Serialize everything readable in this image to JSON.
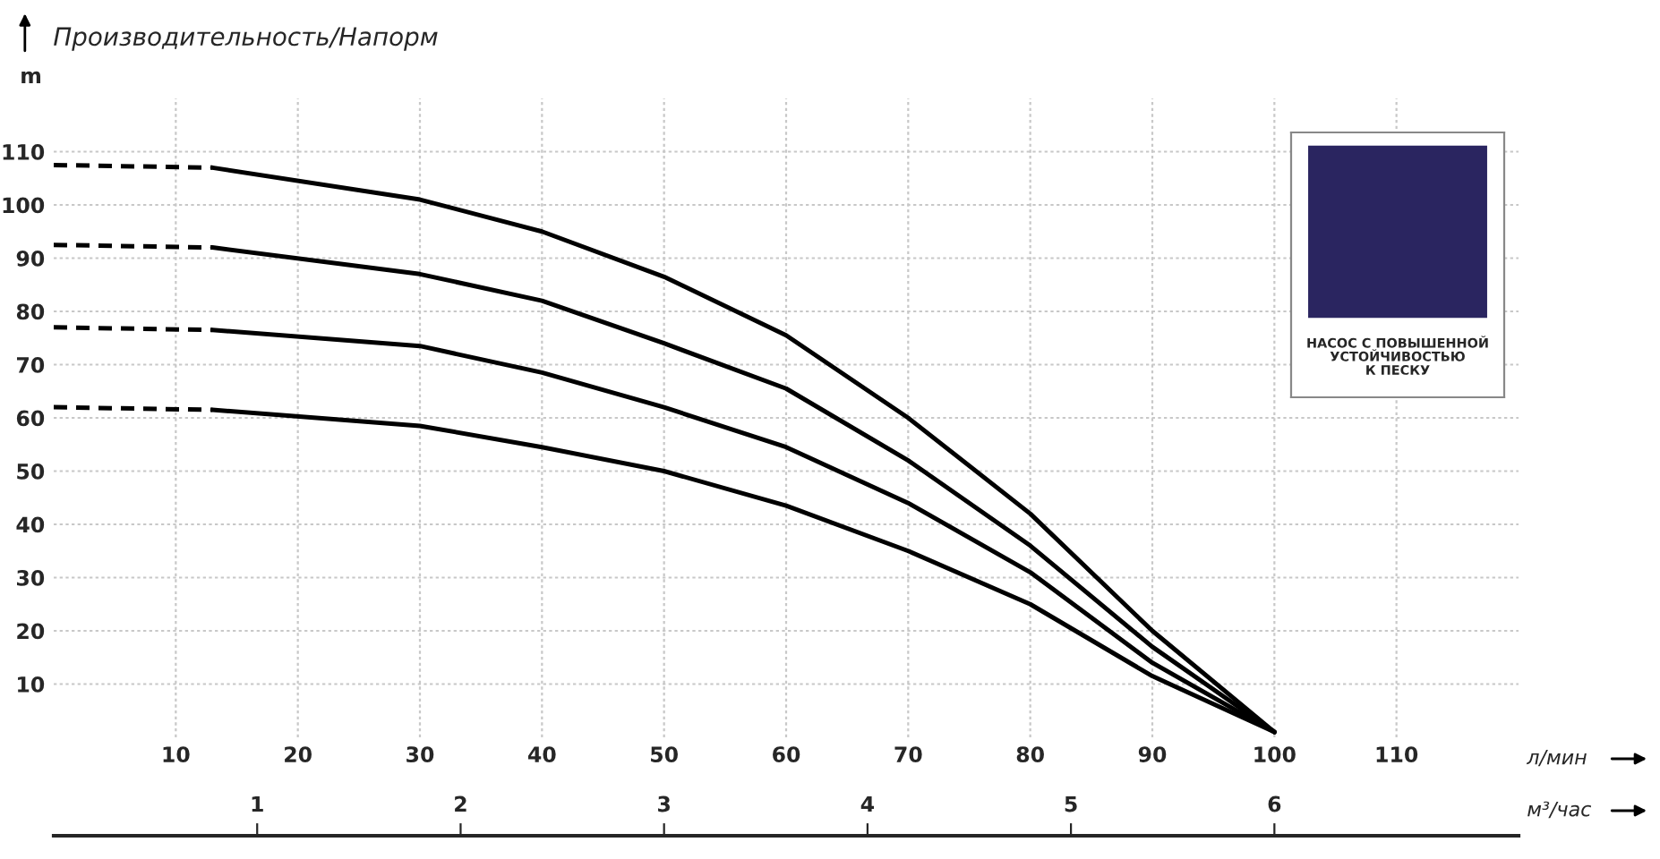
{
  "chart_data": {
    "type": "line",
    "title": "Производительность/Напорм",
    "xlabel": "л/мин",
    "ylabel": "m",
    "x2label": "м³/час",
    "xlim": [
      0,
      120
    ],
    "xticks": [
      10,
      20,
      30,
      40,
      50,
      60,
      70,
      80,
      90,
      100,
      110
    ],
    "ylim": [
      0,
      120
    ],
    "yticks": [
      10,
      20,
      30,
      40,
      50,
      60,
      70,
      80,
      90,
      100,
      110
    ],
    "x2lim": [
      0,
      7.2
    ],
    "x2ticks": [
      1,
      2,
      3,
      4,
      5,
      6
    ],
    "grid": true,
    "series": [
      {
        "color": "#000000",
        "line_style": "dashed",
        "x": [
          0,
          13
        ],
        "values": [
          107.5,
          107
        ]
      },
      {
        "color": "#000000",
        "line_style": "solid",
        "x": [
          13,
          30,
          40,
          50,
          60,
          70,
          80,
          90,
          100
        ],
        "values": [
          107,
          101,
          95,
          86.5,
          75.5,
          60,
          42,
          20,
          1
        ]
      },
      {
        "color": "#000000",
        "line_style": "dashed",
        "x": [
          0,
          13
        ],
        "values": [
          92.5,
          92
        ]
      },
      {
        "color": "#000000",
        "line_style": "solid",
        "x": [
          13,
          30,
          40,
          50,
          60,
          70,
          80,
          90,
          100
        ],
        "values": [
          92,
          87,
          82,
          74,
          65.5,
          52,
          36,
          17,
          1
        ]
      },
      {
        "color": "#000000",
        "line_style": "dashed",
        "x": [
          0,
          13
        ],
        "values": [
          77,
          76.5
        ]
      },
      {
        "color": "#000000",
        "line_style": "solid",
        "x": [
          13,
          30,
          40,
          50,
          60,
          70,
          80,
          90,
          100
        ],
        "values": [
          76.5,
          73.5,
          68.5,
          62,
          54.5,
          44,
          31,
          14,
          1
        ]
      },
      {
        "color": "#000000",
        "line_style": "dashed",
        "x": [
          0,
          13
        ],
        "values": [
          62,
          61.5
        ]
      },
      {
        "color": "#000000",
        "line_style": "solid",
        "x": [
          13,
          30,
          40,
          50,
          60,
          70,
          80,
          90,
          100
        ],
        "values": [
          61.5,
          58.5,
          54.5,
          50,
          43.5,
          35,
          25,
          11.5,
          1
        ]
      }
    ],
    "annotations": [
      "НАСОС С ПОВЫШЕННОЙ\nУСТОЙЧИВОСТЬЮ\nК ПЕСКУ"
    ]
  }
}
